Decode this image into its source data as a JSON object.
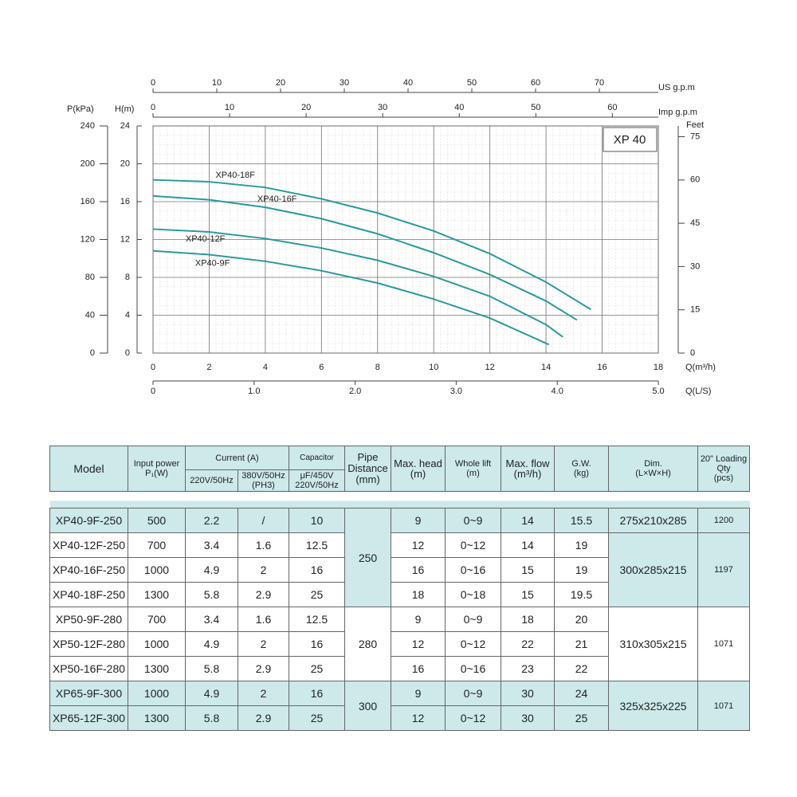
{
  "chart_data": {
    "type": "line",
    "title": "XP 40",
    "x_label": "Q(m³/h)",
    "y_label": "H(m)",
    "xlim": [
      0,
      18
    ],
    "xticks": [
      0,
      2,
      4,
      6,
      8,
      10,
      12,
      14,
      16,
      18
    ],
    "ylim": [
      0,
      24
    ],
    "yticks": [
      0,
      4,
      8,
      12,
      16,
      20,
      24
    ],
    "grid": true,
    "color": "#2a9a9c",
    "secondary_axes": [
      {
        "side": "top",
        "label": "US g.p.m",
        "lim": [
          0,
          79.25
        ],
        "ticks": [
          0,
          10,
          20,
          30,
          40,
          50,
          60,
          70
        ]
      },
      {
        "side": "top",
        "label": "Imp g.p.m",
        "lim": [
          0,
          66
        ],
        "ticks": [
          0,
          10,
          20,
          30,
          40,
          50,
          60
        ]
      },
      {
        "side": "bottom",
        "label": "Q(L/S)",
        "lim": [
          0,
          5
        ],
        "ticks": [
          0,
          {
            "value": 1,
            "label": "1.0"
          },
          {
            "value": 2,
            "label": "2.0"
          },
          {
            "value": 3,
            "label": "3.0"
          },
          {
            "value": 4,
            "label": "4.0"
          },
          {
            "value": 5,
            "label": "5.0"
          }
        ]
      },
      {
        "side": "left",
        "label": "P(kPa)",
        "lim": [
          0,
          240
        ],
        "ticks": [
          0,
          40,
          80,
          120,
          160,
          200,
          240
        ]
      },
      {
        "side": "right",
        "label": "Feet",
        "lim": [
          0,
          78.74
        ],
        "ticks": [
          0,
          15,
          30,
          45,
          60,
          75
        ]
      }
    ],
    "series": [
      {
        "name": "XP40-18F",
        "x": [
          0,
          2,
          4,
          6,
          8,
          10,
          12,
          14,
          15.6
        ],
        "values": [
          18.3,
          18.1,
          17.5,
          16.3,
          14.8,
          12.9,
          10.5,
          7.5,
          4.6
        ]
      },
      {
        "name": "XP40-16F",
        "x": [
          0,
          2,
          4,
          6,
          8,
          10,
          12,
          14,
          15.1
        ],
        "values": [
          16.6,
          16.2,
          15.4,
          14.2,
          12.6,
          10.6,
          8.3,
          5.5,
          3.5
        ]
      },
      {
        "name": "XP40-12F",
        "x": [
          0,
          2,
          4,
          6,
          8,
          10,
          12,
          14,
          14.6
        ],
        "values": [
          13.1,
          12.8,
          12.1,
          11.1,
          9.8,
          8.1,
          6.0,
          3.0,
          1.7
        ]
      },
      {
        "name": "XP40-9F",
        "x": [
          0,
          2,
          4,
          6,
          8,
          10,
          12,
          14.1
        ],
        "values": [
          10.8,
          10.4,
          9.7,
          8.7,
          7.4,
          5.7,
          3.7,
          0.9
        ]
      }
    ]
  },
  "table": {
    "header": {
      "model": "Model",
      "power": "Input power",
      "power_unit": "P₁(W)",
      "current": "Current  (A)",
      "current_220": "220V/50Hz",
      "current_380": "380V/50Hz",
      "current_380_note": "(PH3)",
      "capacitor": "Capacitor",
      "capacitor_rating": "μF/450V",
      "capacitor_supply": "220V/50Hz",
      "pipe": "Pipe Distance",
      "pipe_unit": "(mm)",
      "head": "Max. head",
      "head_unit": "(m)",
      "lift": "Whole lift",
      "lift_unit": "(m)",
      "flow": "Max. flow",
      "flow_unit": "(m³/h)",
      "gw": "G.W.",
      "gw_unit": "(kg)",
      "dim": "Dim.",
      "dim_unit": "(L×W×H)",
      "qty": "20\" Loading Qty",
      "qty_unit": "(pcs)"
    },
    "rows": [
      [
        "XP40-9F-250",
        "500",
        "2.2",
        "/",
        "10",
        "9",
        "0~9",
        "14",
        "15.5"
      ],
      [
        "XP40-12F-250",
        "700",
        "3.4",
        "1.6",
        "12.5",
        "12",
        "0~12",
        "14",
        "19"
      ],
      [
        "XP40-16F-250",
        "1000",
        "4.9",
        "2",
        "16",
        "16",
        "0~16",
        "15",
        "19"
      ],
      [
        "XP40-18F-250",
        "1300",
        "5.8",
        "2.9",
        "25",
        "18",
        "0~18",
        "15",
        "19.5"
      ],
      [
        "XP50-9F-280",
        "700",
        "3.4",
        "1.6",
        "12.5",
        "9",
        "0~9",
        "18",
        "20"
      ],
      [
        "XP50-12F-280",
        "1000",
        "4.9",
        "2",
        "16",
        "12",
        "0~12",
        "22",
        "21"
      ],
      [
        "XP50-16F-280",
        "1300",
        "5.8",
        "2.9",
        "25",
        "16",
        "0~16",
        "23",
        "22"
      ],
      [
        "XP65-9F-300",
        "1000",
        "4.9",
        "2",
        "16",
        "9",
        "0~9",
        "30",
        "24"
      ],
      [
        "XP65-12F-300",
        "1300",
        "5.8",
        "2.9",
        "25",
        "12",
        "0~12",
        "30",
        "25"
      ]
    ],
    "pipe_distance": [
      "250",
      "280",
      "300"
    ],
    "dimensions": [
      {
        "dim": "275x210x285",
        "qty": "1200"
      },
      {
        "dim": "300x285x215",
        "qty": "1197"
      },
      {
        "dim": "310x305x215",
        "qty": "1071"
      },
      {
        "dim": "325x325x225",
        "qty": "1071"
      }
    ]
  }
}
